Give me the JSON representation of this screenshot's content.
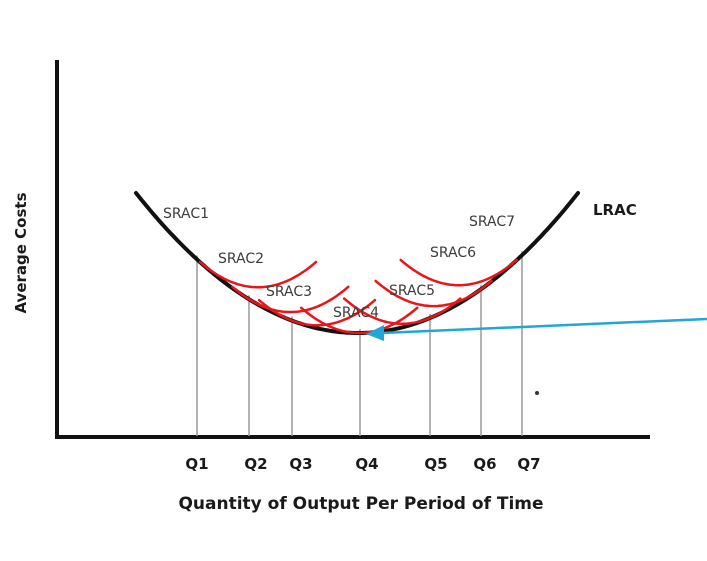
{
  "axes": {
    "y_label": "Average Costs",
    "x_label": "Quantity of Output Per Period of Time"
  },
  "lrac": {
    "label": "LRAC",
    "color": "#111111"
  },
  "quantities": [
    "Q1",
    "Q2",
    "Q3",
    "Q4",
    "Q5",
    "Q6",
    "Q7"
  ],
  "srac_curves": [
    {
      "label": "SRAC1",
      "quantity": "Q1"
    },
    {
      "label": "SRAC2",
      "quantity": "Q2"
    },
    {
      "label": "SRAC3",
      "quantity": "Q3"
    },
    {
      "label": "SRAC4",
      "quantity": "Q4"
    },
    {
      "label": "SRAC5",
      "quantity": "Q5"
    },
    {
      "label": "SRAC6",
      "quantity": "Q6"
    },
    {
      "label": "SRAC7",
      "quantity": "Q7"
    }
  ],
  "colors": {
    "srac": "#e8161b",
    "axis": "#111111",
    "dropline": "#9a9a9a",
    "arrow": "#22a6d8"
  }
}
